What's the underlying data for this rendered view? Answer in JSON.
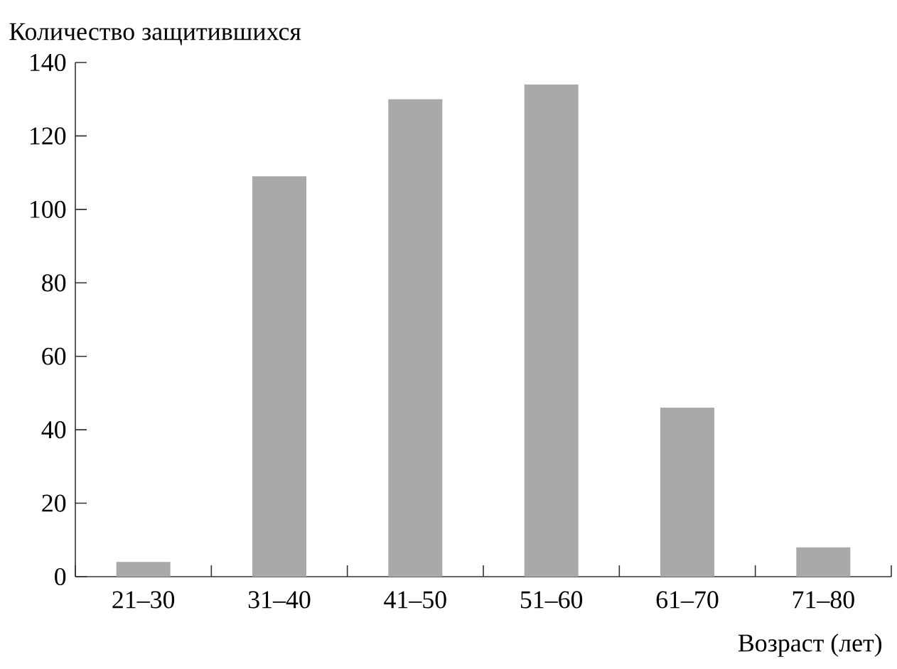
{
  "chart_data": {
    "type": "bar",
    "ylabel": "Количество защитившихся",
    "xlabel": "Возраст (лет)",
    "categories": [
      "21–30",
      "31–40",
      "41–50",
      "51–60",
      "61–70",
      "71–80"
    ],
    "values": [
      4,
      109,
      130,
      134,
      46,
      8
    ],
    "color": "#a9a9a9",
    "ylim": [
      0,
      140
    ],
    "yticks": [
      0,
      20,
      40,
      60,
      80,
      100,
      120,
      140
    ],
    "grid": false
  }
}
